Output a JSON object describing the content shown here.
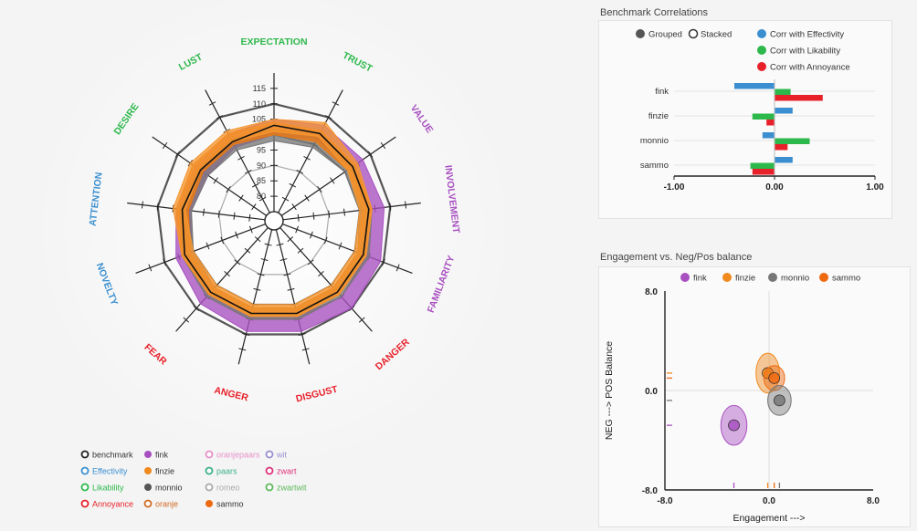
{
  "radar_legend": [
    {
      "label": "benchmark",
      "color": "#222222",
      "style": "ring"
    },
    {
      "label": "Effectivity",
      "color": "#3b8fd0",
      "style": "ring"
    },
    {
      "label": "Likability",
      "color": "#2db84c",
      "style": "ring"
    },
    {
      "label": "Annoyance",
      "color": "#e8202a",
      "style": "ring"
    },
    {
      "label": "fink",
      "color": "#a850c0",
      "style": "dot"
    },
    {
      "label": "finzie",
      "color": "#f08a1e",
      "style": "dot"
    },
    {
      "label": "monnio",
      "color": "#555555",
      "style": "dot"
    },
    {
      "label": "oranje",
      "color": "#d2691e",
      "style": "ring"
    },
    {
      "label": "oranjepaars",
      "color": "#e68fc8",
      "style": "ring"
    },
    {
      "label": "paars",
      "color": "#3bb08c",
      "style": "ring"
    },
    {
      "label": "romeo",
      "color": "#aaaaaa",
      "style": "ring"
    },
    {
      "label": "sammo",
      "color": "#ee6a10",
      "style": "dot"
    },
    {
      "label": "wit",
      "color": "#9a8ed0",
      "style": "ring"
    },
    {
      "label": "zwart",
      "color": "#e0307a",
      "style": "ring"
    },
    {
      "label": "zwartwit",
      "color": "#5cb85c",
      "style": "ring"
    }
  ],
  "chart_data": [
    {
      "type": "radar",
      "title": "",
      "axes": [
        {
          "label": "EXPECTATION",
          "color": "#2db84c"
        },
        {
          "label": "TRUST",
          "color": "#2db84c"
        },
        {
          "label": "VALUE",
          "color": "#a850c0"
        },
        {
          "label": "INVOLVEMENT",
          "color": "#a850c0"
        },
        {
          "label": "FAMILIARITY",
          "color": "#a850c0"
        },
        {
          "label": "DANGER",
          "color": "#e8202a"
        },
        {
          "label": "DISGUST",
          "color": "#e8202a"
        },
        {
          "label": "ANGER",
          "color": "#e8202a"
        },
        {
          "label": "FEAR",
          "color": "#e8202a"
        },
        {
          "label": "NOVELTY",
          "color": "#3b8fd0"
        },
        {
          "label": "ATTENTION",
          "color": "#3b8fd0"
        },
        {
          "label": "DESIRE",
          "color": "#2db84c"
        },
        {
          "label": "LUST",
          "color": "#2db84c"
        }
      ],
      "scale": {
        "min": 75,
        "max": 120,
        "ticks": [
          "80",
          "85",
          "90",
          "95",
          "100",
          "105",
          "110",
          "115"
        ],
        "tick_values": [
          80,
          85,
          90,
          95,
          100,
          105,
          110,
          115
        ]
      },
      "series": [
        {
          "name": "fink",
          "color": "#a850c0",
          "lower": [
            100,
            102,
            102,
            103,
            104,
            105,
            104,
            104,
            103,
            101,
            99,
            98,
            99
          ],
          "upper": [
            105,
            107,
            107,
            108,
            109,
            110,
            109,
            109,
            108,
            106,
            104,
            103,
            104
          ]
        },
        {
          "name": "monnio",
          "color": "#777777",
          "lower": [
            98,
            99,
            100,
            100,
            101,
            101,
            101,
            101,
            101,
            100,
            99,
            98,
            98
          ],
          "upper": [
            102,
            103,
            104,
            104,
            105,
            105,
            105,
            105,
            105,
            104,
            103,
            102,
            102
          ]
        },
        {
          "name": "sammo",
          "color": "#ee7a10",
          "lower": [
            100,
            101,
            101,
            101,
            101,
            101,
            101,
            101,
            101,
            101,
            100,
            100,
            100
          ],
          "upper": [
            104,
            105,
            104,
            104,
            104,
            104,
            104,
            104,
            104,
            104,
            104,
            104,
            104
          ]
        },
        {
          "name": "finzie",
          "color": "#f59630",
          "lower": [
            101,
            103,
            101,
            100,
            100,
            100,
            100,
            100,
            100,
            100,
            101,
            101,
            101
          ],
          "upper": [
            105,
            108,
            105,
            104,
            104,
            104,
            104,
            104,
            104,
            104,
            105,
            105,
            105
          ]
        }
      ],
      "benchmark": {
        "name": "benchmark",
        "color": "#111111",
        "values": [
          103,
          104,
          103,
          103,
          103,
          103,
          103,
          103,
          103,
          103,
          102,
          101,
          101
        ]
      }
    },
    {
      "type": "bar",
      "orientation": "horizontal",
      "title": "Benchmark Correlations",
      "modes": [
        "Grouped",
        "Stacked"
      ],
      "selected_mode": "Grouped",
      "categories": [
        "fink",
        "finzie",
        "monnio",
        "sammo"
      ],
      "series": [
        {
          "name": "Corr with Effectivity",
          "color": "#3b8fd0",
          "values": [
            -0.4,
            0.18,
            -0.12,
            0.18
          ]
        },
        {
          "name": "Corr with Likability",
          "color": "#2db84c",
          "values": [
            0.16,
            -0.22,
            0.35,
            -0.24
          ]
        },
        {
          "name": "Corr with Annoyance",
          "color": "#e8202a",
          "values": [
            0.48,
            -0.08,
            0.13,
            -0.22
          ]
        }
      ],
      "xlim": [
        -1.0,
        1.0
      ],
      "x_ticks": [
        "-1.00",
        "0.00",
        "1.00"
      ],
      "x_tick_values": [
        -1,
        0,
        1
      ]
    },
    {
      "type": "scatter",
      "title": "Engagement vs. Neg/Pos balance",
      "xlabel": "Engagement --->",
      "ylabel": "NEG ---> POS Balance",
      "xlim": [
        -8.0,
        8.0
      ],
      "ylim": [
        -8.0,
        8.0
      ],
      "x_ticks": [
        "-8.0",
        "0.0",
        "8.0"
      ],
      "x_tick_values": [
        -8,
        0,
        8
      ],
      "y_ticks": [
        "8.0",
        "0.0",
        "-8.0"
      ],
      "y_tick_values": [
        8,
        0,
        -8
      ],
      "points": [
        {
          "name": "fink",
          "color": "#a850c0",
          "x": -2.7,
          "y": -2.8,
          "sx": 1.0,
          "sy": 1.6
        },
        {
          "name": "finzie",
          "color": "#f08a1e",
          "x": -0.1,
          "y": 1.4,
          "sx": 0.9,
          "sy": 1.6
        },
        {
          "name": "sammo",
          "color": "#ee6a10",
          "x": 0.4,
          "y": 1.0,
          "sx": 0.8,
          "sy": 1.0
        },
        {
          "name": "monnio",
          "color": "#777777",
          "x": 0.8,
          "y": -0.8,
          "sx": 0.9,
          "sy": 1.2
        }
      ]
    }
  ]
}
